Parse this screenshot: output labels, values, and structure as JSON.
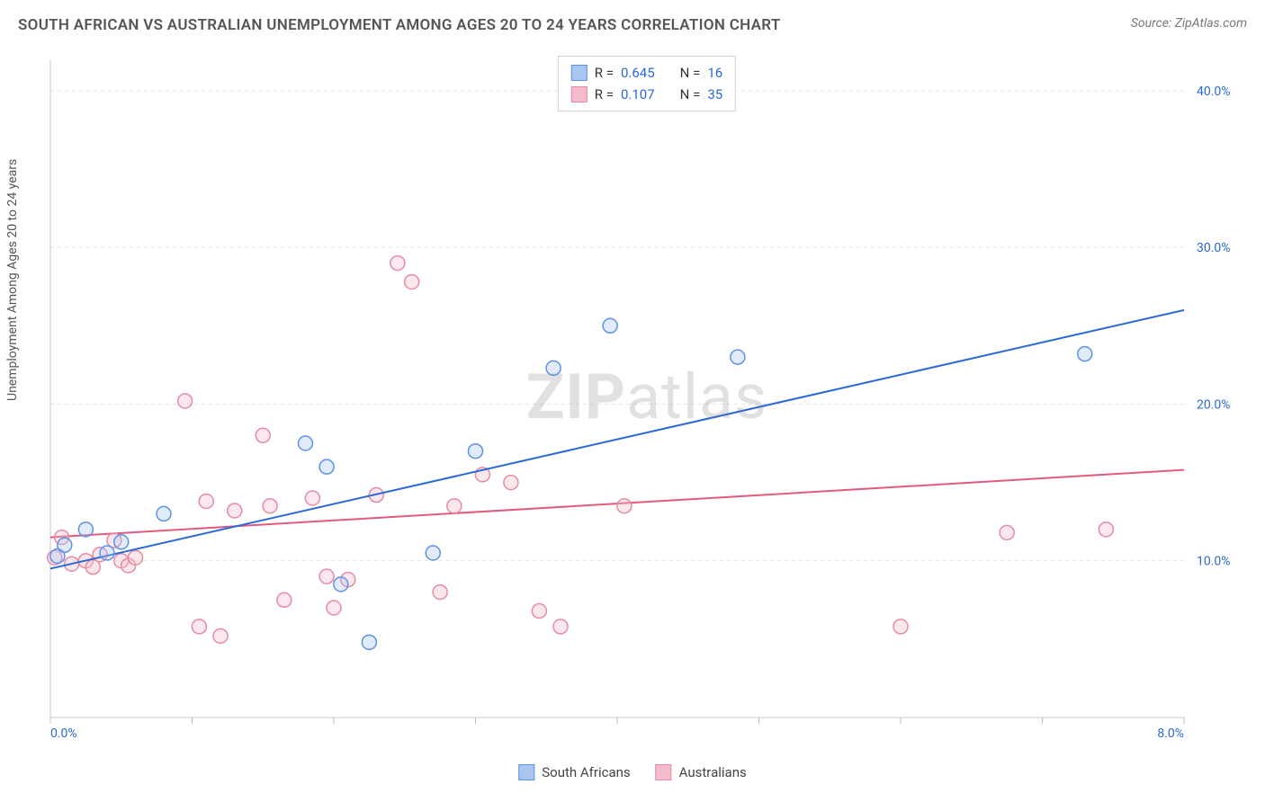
{
  "title": "SOUTH AFRICAN VS AUSTRALIAN UNEMPLOYMENT AMONG AGES 20 TO 24 YEARS CORRELATION CHART",
  "source": "Source: ZipAtlas.com",
  "ylabel": "Unemployment Among Ages 20 to 24 years",
  "watermark_bold": "ZIP",
  "watermark_light": "atlas",
  "chart": {
    "type": "scatter-with-regression",
    "background_color": "#ffffff",
    "grid_color": "#e3e3e3",
    "axis_color": "#c9c9c9",
    "tick_color": "#bfbfbf",
    "xlim": [
      0,
      8
    ],
    "ylim": [
      0,
      42
    ],
    "x_ticks": [
      0,
      1,
      2,
      3,
      4,
      5,
      6,
      7,
      8
    ],
    "x_tick_labels": {
      "0": "0.0%",
      "8": "8.0%"
    },
    "y_gridlines": [
      10,
      20,
      30,
      40
    ],
    "y_tick_labels": {
      "10": "10.0%",
      "20": "20.0%",
      "30": "30.0%",
      "40": "40.0%"
    },
    "marker_radius": 8,
    "marker_stroke_width": 1.5,
    "marker_fill_opacity": 0.35,
    "line_width": 2,
    "label_color": "#2a69d6",
    "label_fontsize": 14
  },
  "series": {
    "south_africans": {
      "label": "South Africans",
      "color_stroke": "#5c93e6",
      "color_fill": "#a9c6f0",
      "line_color": "#2a69d6",
      "R": "0.645",
      "N": "16",
      "points": [
        [
          0.05,
          10.3
        ],
        [
          0.1,
          11.0
        ],
        [
          0.25,
          12.0
        ],
        [
          0.4,
          10.5
        ],
        [
          0.5,
          11.2
        ],
        [
          0.8,
          13.0
        ],
        [
          1.8,
          17.5
        ],
        [
          1.95,
          16.0
        ],
        [
          2.05,
          8.5
        ],
        [
          2.25,
          4.8
        ],
        [
          2.7,
          10.5
        ],
        [
          3.0,
          17.0
        ],
        [
          3.55,
          22.3
        ],
        [
          3.95,
          25.0
        ],
        [
          4.85,
          23.0
        ],
        [
          7.3,
          23.2
        ]
      ],
      "regression": {
        "x1": 0,
        "y1": 9.5,
        "x2": 8,
        "y2": 26.0
      }
    },
    "australians": {
      "label": "Australians",
      "color_stroke": "#e78aa3",
      "color_fill": "#f3bccb",
      "line_color": "#e15a7e",
      "R": "0.107",
      "N": "35",
      "points": [
        [
          0.03,
          10.2
        ],
        [
          0.08,
          11.5
        ],
        [
          0.15,
          9.8
        ],
        [
          0.25,
          10.0
        ],
        [
          0.3,
          9.6
        ],
        [
          0.35,
          10.4
        ],
        [
          0.45,
          11.3
        ],
        [
          0.5,
          10.0
        ],
        [
          0.55,
          9.7
        ],
        [
          0.6,
          10.2
        ],
        [
          0.95,
          20.2
        ],
        [
          1.05,
          5.8
        ],
        [
          1.1,
          13.8
        ],
        [
          1.2,
          5.2
        ],
        [
          1.3,
          13.2
        ],
        [
          1.5,
          18.0
        ],
        [
          1.55,
          13.5
        ],
        [
          1.65,
          7.5
        ],
        [
          1.85,
          14.0
        ],
        [
          1.95,
          9.0
        ],
        [
          2.0,
          7.0
        ],
        [
          2.1,
          8.8
        ],
        [
          2.3,
          14.2
        ],
        [
          2.45,
          29.0
        ],
        [
          2.55,
          27.8
        ],
        [
          2.75,
          8.0
        ],
        [
          2.85,
          13.5
        ],
        [
          3.05,
          15.5
        ],
        [
          3.25,
          15.0
        ],
        [
          3.45,
          6.8
        ],
        [
          3.6,
          5.8
        ],
        [
          4.05,
          13.5
        ],
        [
          6.0,
          5.8
        ],
        [
          6.75,
          11.8
        ],
        [
          7.45,
          12.0
        ]
      ],
      "regression": {
        "x1": 0,
        "y1": 11.5,
        "x2": 8,
        "y2": 15.8
      }
    }
  },
  "stats_labels": {
    "R": "R =",
    "N": "N ="
  }
}
